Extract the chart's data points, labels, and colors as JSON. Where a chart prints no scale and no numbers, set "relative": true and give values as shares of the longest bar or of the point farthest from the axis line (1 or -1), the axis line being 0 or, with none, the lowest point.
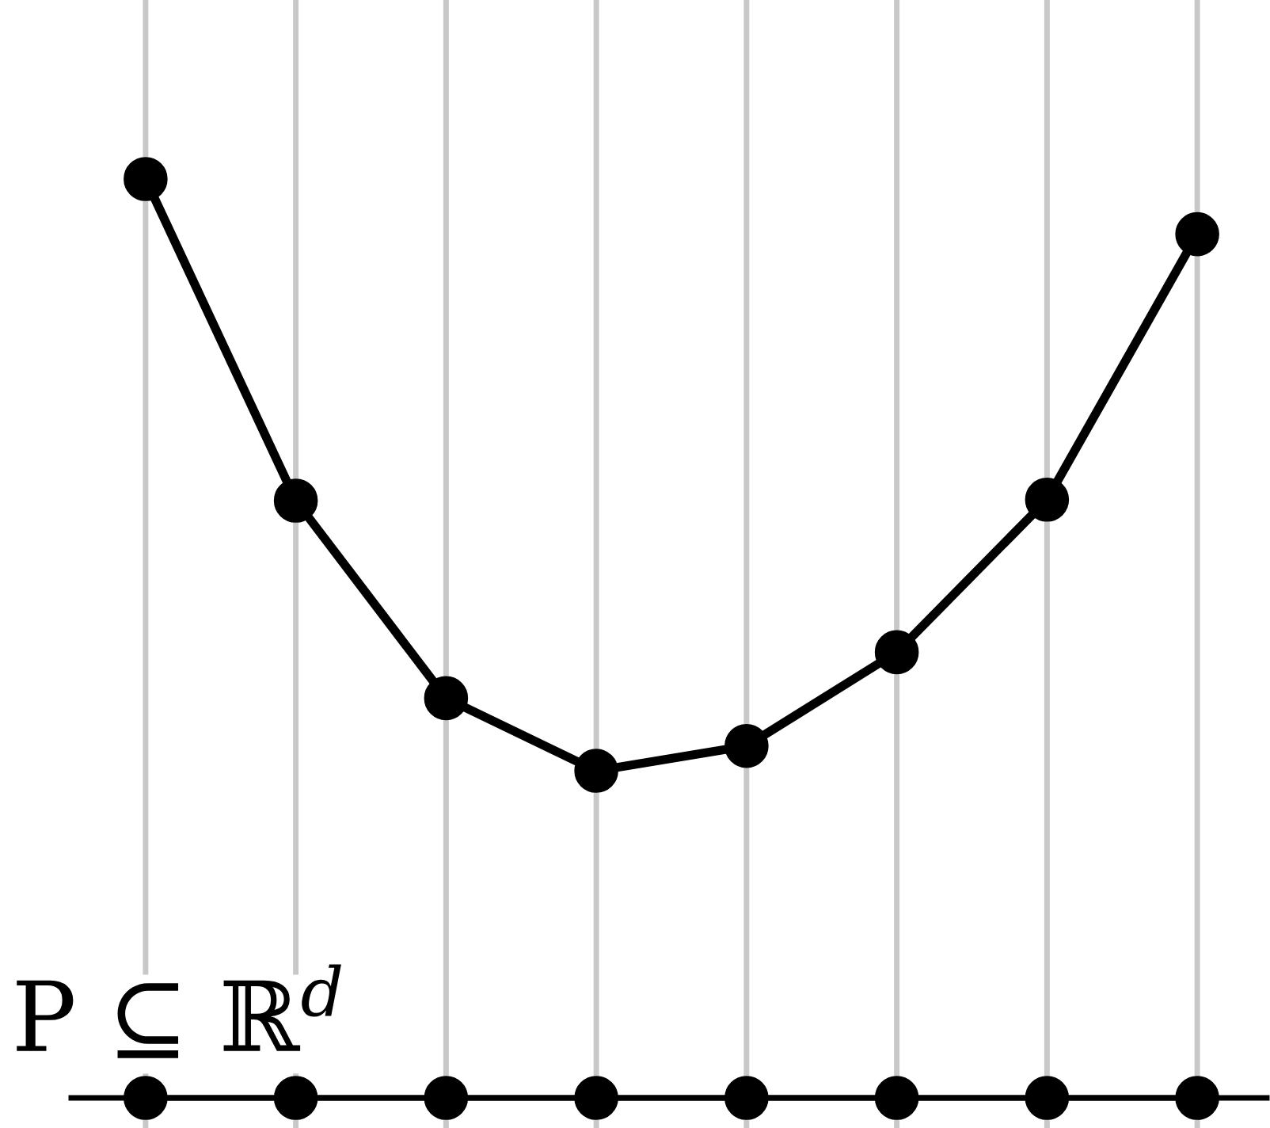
{
  "chart_data": {
    "type": "line",
    "relative": true,
    "categories": [
      null,
      null,
      null,
      null,
      null,
      null,
      null,
      null
    ],
    "grid": "x",
    "legend": false,
    "marker": "circle",
    "series": [
      {
        "color": "#000000",
        "values": [
          1,
          0.65,
          0.435,
          0.356,
          0.383,
          0.485,
          0.651,
          0.94
        ]
      },
      {
        "color": "#000000",
        "values": [
          0,
          0,
          0,
          0,
          0,
          0,
          0,
          0
        ]
      }
    ],
    "annotations": [
      "P ⊆ ℝ$^{d}$"
    ]
  }
}
